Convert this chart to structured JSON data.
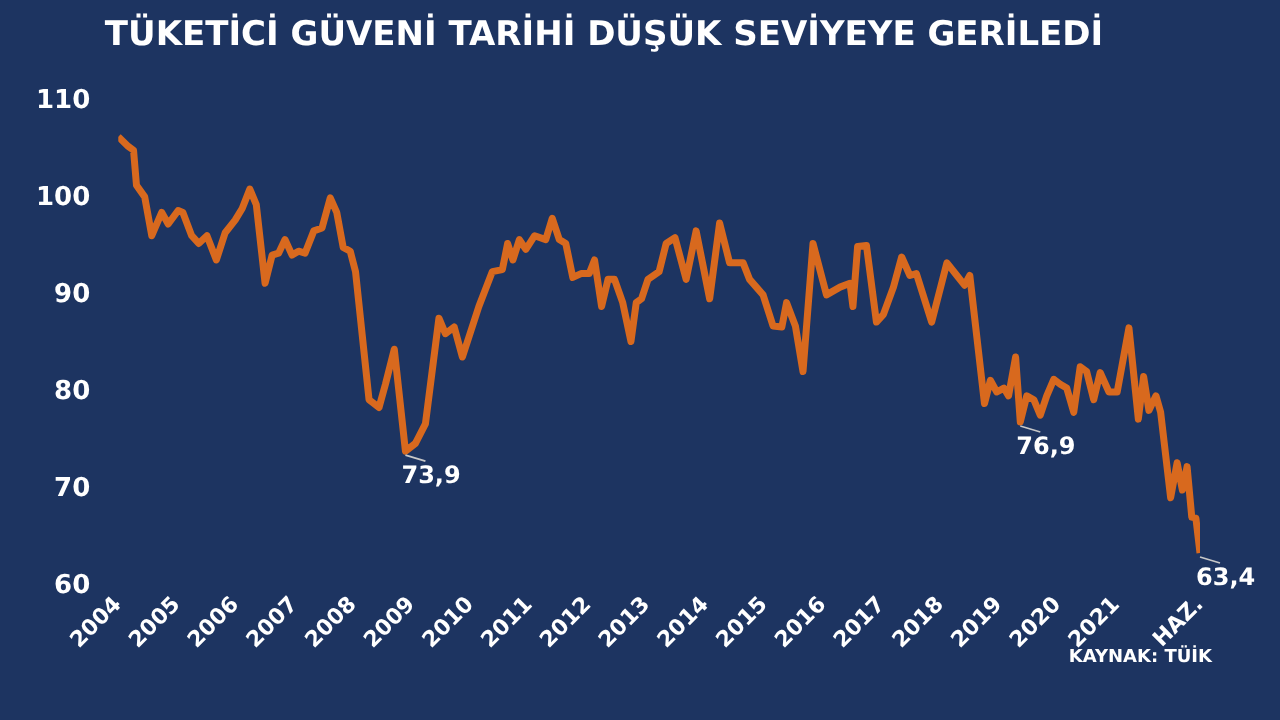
{
  "chart_data": {
    "type": "line",
    "title": "TÜKETİCİ GÜVENİ TARİHİ DÜŞÜK SEVİYEYE GERİLEDİ",
    "x": [
      2004.0,
      2004.17,
      2004.26,
      2004.31,
      2004.45,
      2004.57,
      2004.74,
      2004.85,
      2005.02,
      2005.1,
      2005.25,
      2005.37,
      2005.51,
      2005.67,
      2005.82,
      2005.99,
      2006.11,
      2006.24,
      2006.35,
      2006.5,
      2006.62,
      2006.73,
      2006.84,
      2006.96,
      2007.07,
      2007.18,
      2007.33,
      2007.47,
      2007.61,
      2007.72,
      2007.83,
      2007.95,
      2008.04,
      2008.27,
      2008.44,
      2008.55,
      2008.7,
      2008.89,
      2009.06,
      2009.23,
      2009.46,
      2009.57,
      2009.72,
      2009.86,
      2010.14,
      2010.37,
      2010.54,
      2010.63,
      2010.72,
      2010.83,
      2010.94,
      2011.09,
      2011.28,
      2011.39,
      2011.51,
      2011.62,
      2011.74,
      2011.88,
      2012.02,
      2012.11,
      2012.23,
      2012.34,
      2012.45,
      2012.59,
      2012.73,
      2012.82,
      2012.91,
      2013.02,
      2013.21,
      2013.33,
      2013.48,
      2013.67,
      2013.84,
      2014.07,
      2014.24,
      2014.41,
      2014.64,
      2014.75,
      2014.98,
      2015.15,
      2015.3,
      2015.38,
      2015.53,
      2015.66,
      2015.83,
      2016.06,
      2016.29,
      2016.46,
      2016.51,
      2016.59,
      2016.74,
      2016.91,
      2017.03,
      2017.2,
      2017.34,
      2017.48,
      2017.59,
      2017.85,
      2018.11,
      2018.28,
      2018.41,
      2018.5,
      2018.75,
      2018.85,
      2018.96,
      2019.08,
      2019.16,
      2019.28,
      2019.36,
      2019.47,
      2019.59,
      2019.7,
      2019.81,
      2019.93,
      2020.04,
      2020.15,
      2020.27,
      2020.38,
      2020.49,
      2020.61,
      2020.72,
      2020.87,
      2021.01,
      2021.21,
      2021.37,
      2021.46,
      2021.55,
      2021.67,
      2021.75,
      2021.92,
      2022.03,
      2022.12,
      2022.2,
      2022.28,
      2022.35,
      2022.42
    ],
    "series": [
      {
        "color": "#d8691e",
        "values": [
          106.3,
          105.3,
          104.9,
          101.3,
          100.1,
          96.1,
          98.5,
          97.3,
          98.7,
          98.5,
          96.1,
          95.3,
          96.1,
          93.6,
          96.4,
          97.7,
          98.9,
          100.9,
          99.3,
          91.2,
          94.1,
          94.3,
          95.7,
          94.1,
          94.5,
          94.3,
          96.6,
          96.9,
          100.0,
          98.5,
          94.9,
          94.5,
          92.4,
          79.2,
          78.4,
          80.8,
          84.4,
          73.9,
          74.7,
          76.7,
          87.6,
          86.0,
          86.7,
          83.6,
          88.8,
          92.4,
          92.6,
          95.3,
          93.6,
          95.7,
          94.7,
          96.1,
          95.7,
          97.9,
          95.7,
          95.3,
          91.8,
          92.2,
          92.2,
          93.6,
          88.8,
          91.6,
          91.6,
          89.2,
          85.2,
          89.2,
          89.6,
          91.6,
          92.4,
          95.3,
          95.9,
          91.6,
          96.6,
          89.6,
          97.4,
          93.3,
          93.3,
          91.6,
          90.0,
          86.8,
          86.7,
          89.2,
          86.8,
          82.1,
          95.3,
          90.0,
          90.8,
          91.2,
          88.8,
          95.0,
          95.1,
          87.2,
          88.0,
          90.8,
          93.9,
          92.0,
          92.2,
          87.2,
          93.3,
          92.0,
          91.0,
          92.0,
          78.8,
          81.2,
          80.0,
          80.4,
          79.6,
          83.6,
          76.9,
          79.6,
          79.2,
          77.6,
          79.6,
          81.3,
          80.8,
          80.4,
          77.9,
          82.6,
          82.1,
          79.2,
          82.0,
          80.0,
          80.0,
          86.6,
          77.2,
          81.6,
          78.1,
          79.6,
          77.9,
          69.1,
          72.7,
          69.9,
          72.3,
          67.1,
          67.0,
          63.4
        ]
      }
    ],
    "xlim": [
      2004,
      2022.42
    ],
    "xticks": [
      2004,
      2005,
      2006,
      2007,
      2008,
      2009,
      2010,
      2011,
      2012,
      2013,
      2014,
      2015,
      2016,
      2017,
      2018,
      2019,
      2020,
      2021,
      {
        "value": 2022.42,
        "label": "HAZ."
      }
    ],
    "ylim": [
      60,
      110
    ],
    "yticks": [
      60,
      70,
      80,
      90,
      100,
      110
    ],
    "grid": false,
    "legend": false,
    "marker": "none",
    "line_style": "solid",
    "annotations": [
      {
        "text": "73,9",
        "x": 2008.89,
        "y": 73.9
      },
      {
        "text": "76,9",
        "x": 2019.36,
        "y": 76.9
      },
      {
        "text": "63,4",
        "x": 2022.42,
        "y": 63.4
      },
      "KAYNAK: TÜİK"
    ]
  }
}
